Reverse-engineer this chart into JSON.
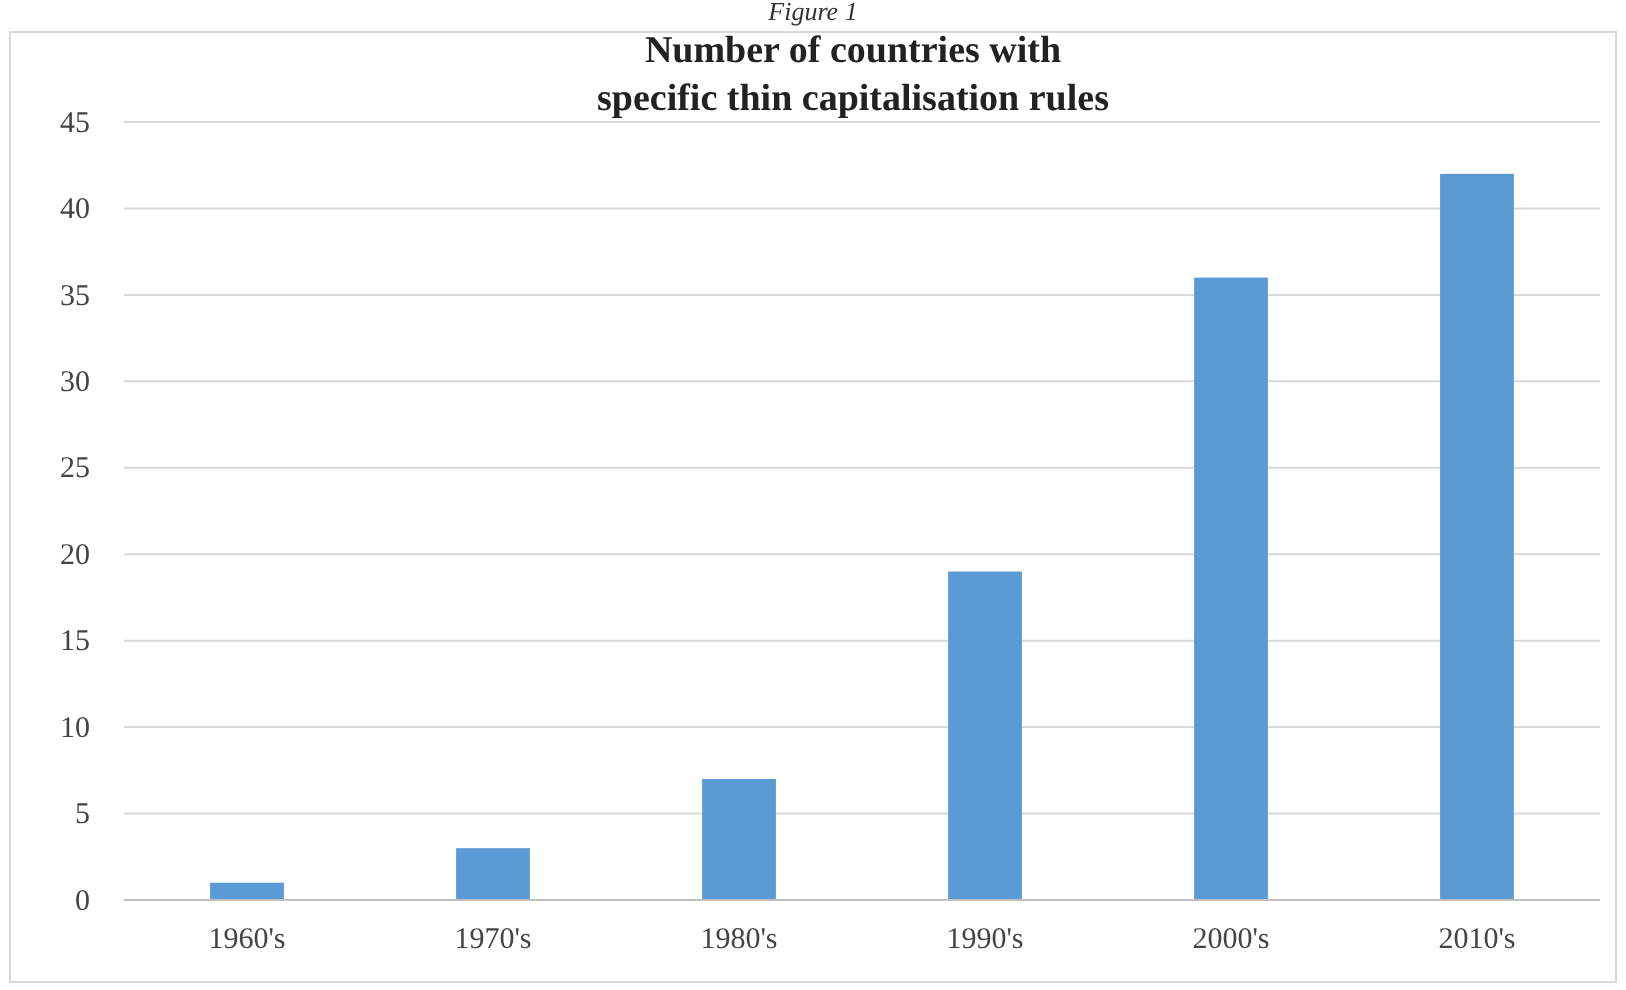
{
  "chart_data": {
    "type": "bar",
    "title": "Number of countries  with\nspecific thin capitalisation rules",
    "annotations": [
      "Figure 1"
    ],
    "categories": [
      "1960's",
      "1970's",
      "1980's",
      "1990's",
      "2000's",
      "2010's"
    ],
    "values": [
      1,
      3,
      7,
      19,
      36,
      42
    ],
    "color": "#5b9bd5",
    "ylim": [
      0,
      45
    ],
    "yticks": [
      0,
      5,
      10,
      15,
      20,
      25,
      30,
      35,
      40,
      45
    ],
    "grid": "y"
  }
}
